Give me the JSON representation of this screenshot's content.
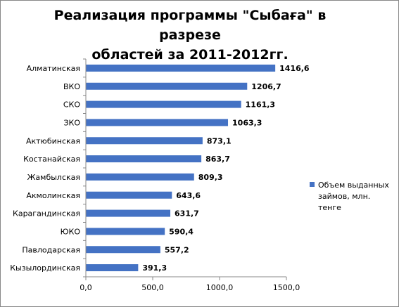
{
  "title": "Реализация программы \"Сыбаға\" в разрезе областей за 2011-2012гг.",
  "title_lines": [
    "Реализация программы \"Сыбаға\" в разрезе",
    "областей за 2011-2012гг."
  ],
  "colors": {
    "bar": "#4472C4",
    "axis": "#888888"
  },
  "chart_data": {
    "type": "bar",
    "orientation": "horizontal",
    "title": "Реализация программы \"Сыбаға\" в разрезе областей за 2011-2012гг.",
    "categories": [
      "Алматинская",
      "ВКО",
      "СКО",
      "ЗКО",
      "Актюбинская",
      "Костанайская",
      "Жамбылская",
      "Акмолинская",
      "Карагандинская",
      "ЮКО",
      "Павлодарская",
      "Кызылординская"
    ],
    "series": [
      {
        "name": "Объем выданных займов, млн. тенге",
        "values": [
          1416.6,
          1206.7,
          1161.3,
          1063.3,
          873.1,
          863.7,
          809.3,
          643.6,
          631.7,
          590.4,
          557.2,
          391.3
        ],
        "labels": [
          "1416,6",
          "1206,7",
          "1161,3",
          "1063,3",
          "873,1",
          "863,7",
          "809,3",
          "643,6",
          "631,7",
          "590,4",
          "557,2",
          "391,3"
        ]
      }
    ],
    "xlim": [
      0,
      1500
    ],
    "xticks": [
      0,
      500,
      1000,
      1500
    ],
    "xtick_labels": [
      "0,0",
      "500,0",
      "1000,0",
      "1500,0"
    ],
    "grid": false,
    "legend_position": "right"
  },
  "legend": {
    "label_lines": [
      "Объем выданных",
      "займов, млн. тенге"
    ]
  }
}
